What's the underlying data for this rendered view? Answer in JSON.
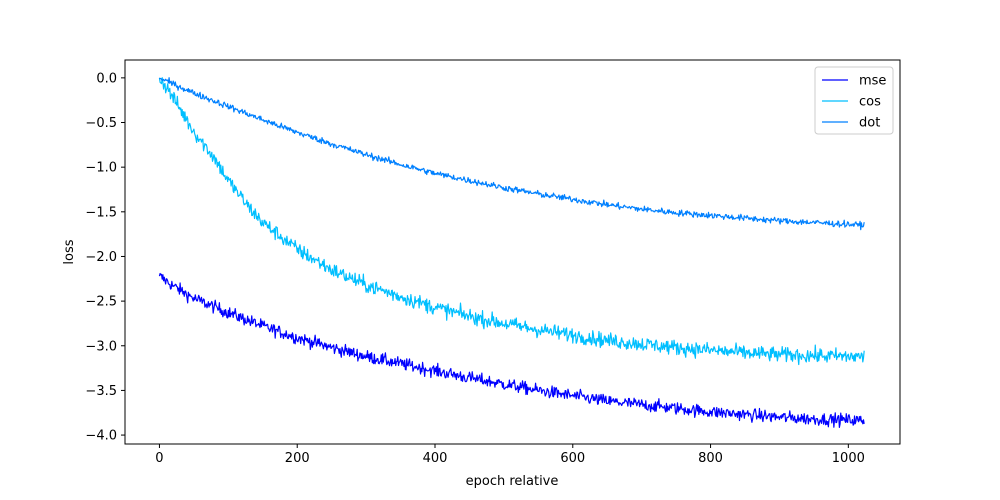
{
  "chart_data": {
    "type": "line",
    "title": "",
    "xlabel": "epoch relative",
    "ylabel": "loss",
    "xlim": [
      -50,
      1075
    ],
    "ylim": [
      -4.1,
      0.2
    ],
    "xticks": [
      0,
      200,
      400,
      600,
      800,
      1000
    ],
    "xtick_labels": [
      "0",
      "200",
      "400",
      "600",
      "800",
      "1000"
    ],
    "yticks": [
      0.0,
      -0.5,
      -1.0,
      -1.5,
      -2.0,
      -2.5,
      -3.0,
      -3.5,
      -4.0
    ],
    "ytick_labels": [
      "0.0",
      "−0.5",
      "−1.0",
      "−1.5",
      "−2.0",
      "−2.5",
      "−3.0",
      "−3.5",
      "−4.0"
    ],
    "grid": false,
    "legend_position": "top-right",
    "x_max": 1023,
    "series": [
      {
        "name": "mse",
        "color": "#0000ff",
        "noise": 0.05,
        "x": [
          0,
          20,
          50,
          100,
          150,
          200,
          250,
          300,
          350,
          400,
          450,
          500,
          550,
          600,
          650,
          700,
          750,
          800,
          850,
          900,
          950,
          1000,
          1023
        ],
        "values": [
          -2.22,
          -2.33,
          -2.47,
          -2.63,
          -2.78,
          -2.91,
          -3.02,
          -3.12,
          -3.2,
          -3.28,
          -3.36,
          -3.43,
          -3.5,
          -3.56,
          -3.62,
          -3.66,
          -3.7,
          -3.74,
          -3.77,
          -3.8,
          -3.82,
          -3.83,
          -3.84
        ]
      },
      {
        "name": "cos",
        "color": "#00bfff",
        "noise": 0.06,
        "x": [
          0,
          10,
          30,
          50,
          80,
          100,
          130,
          150,
          200,
          250,
          300,
          350,
          400,
          450,
          500,
          550,
          600,
          650,
          700,
          750,
          800,
          850,
          900,
          950,
          1000,
          1023
        ],
        "values": [
          0.0,
          -0.1,
          -0.35,
          -0.6,
          -0.9,
          -1.15,
          -1.45,
          -1.62,
          -1.92,
          -2.15,
          -2.32,
          -2.45,
          -2.57,
          -2.67,
          -2.75,
          -2.82,
          -2.88,
          -2.94,
          -2.98,
          -3.02,
          -3.05,
          -3.08,
          -3.1,
          -3.11,
          -3.12,
          -3.12
        ]
      },
      {
        "name": "dot",
        "color": "#0080ff",
        "noise": 0.025,
        "x": [
          0,
          50,
          100,
          150,
          200,
          250,
          300,
          350,
          400,
          450,
          500,
          550,
          600,
          650,
          700,
          750,
          800,
          850,
          900,
          950,
          1000,
          1023
        ],
        "values": [
          0.0,
          -0.17,
          -0.32,
          -0.47,
          -0.61,
          -0.74,
          -0.86,
          -0.97,
          -1.07,
          -1.15,
          -1.23,
          -1.3,
          -1.36,
          -1.42,
          -1.47,
          -1.51,
          -1.54,
          -1.57,
          -1.6,
          -1.62,
          -1.64,
          -1.65
        ]
      }
    ]
  }
}
